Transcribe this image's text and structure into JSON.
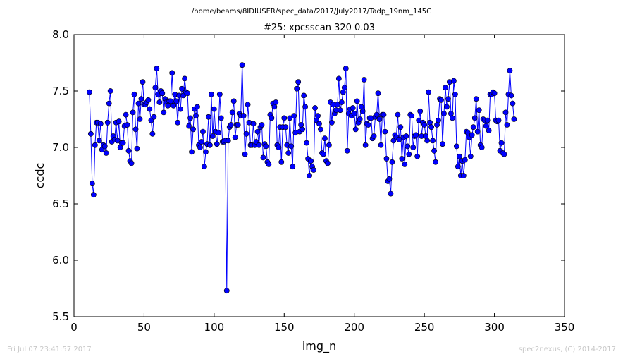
{
  "footer": {
    "timestamp": "Fri Jul 07 23:41:57 2017",
    "credit": "spec2nexus, (C) 2014-2017"
  },
  "chart_data": {
    "type": "line",
    "suptitle": "/home/beams/8IDIUSER/spec_data/2017/July2017/Tadp_19nm_145C",
    "title": "#25: xpcsscan 320 0.03",
    "xlabel": "img_n",
    "ylabel": "ccdc",
    "xlim": [
      0,
      350
    ],
    "ylim": [
      5.5,
      8.0
    ],
    "xticks": [
      0,
      50,
      100,
      150,
      200,
      250,
      300,
      350
    ],
    "yticks": [
      5.5,
      6.0,
      6.5,
      7.0,
      7.5,
      8.0
    ],
    "ytick_labels": [
      "5.5",
      "6.0",
      "6.5",
      "7.0",
      "7.5",
      "8.0"
    ],
    "grid": false,
    "series": [
      {
        "color": "#0000ff",
        "marker": "circle",
        "x_start": 11,
        "x_step": 1,
        "y": [
          7.49,
          7.12,
          6.68,
          6.58,
          7.02,
          7.22,
          7.22,
          7.06,
          7.21,
          6.98,
          7.02,
          7.01,
          6.95,
          7.22,
          7.39,
          7.5,
          7.05,
          7.1,
          7.07,
          7.22,
          7.06,
          7.23,
          7.0,
          7.04,
          7.04,
          7.19,
          7.29,
          7.2,
          6.97,
          6.88,
          6.86,
          7.31,
          7.47,
          7.16,
          6.99,
          7.39,
          7.25,
          7.43,
          7.58,
          7.38,
          7.38,
          7.4,
          7.42,
          7.34,
          7.24,
          7.12,
          7.27,
          7.53,
          7.7,
          7.47,
          7.4,
          7.5,
          7.48,
          7.31,
          7.43,
          7.4,
          7.37,
          7.41,
          7.41,
          7.66,
          7.37,
          7.47,
          7.41,
          7.22,
          7.46,
          7.34,
          7.52,
          7.46,
          7.61,
          7.49,
          7.48,
          7.19,
          7.26,
          6.96,
          7.16,
          7.34,
          7.28,
          7.36,
          7.02,
          7.0,
          7.05,
          7.14,
          6.83,
          6.96,
          7.03,
          7.27,
          7.02,
          7.47,
          7.1,
          7.34,
          7.14,
          7.03,
          7.13,
          7.47,
          7.26,
          7.05,
          7.05,
          7.06,
          5.73,
          7.06,
          7.18,
          7.2,
          7.31,
          7.41,
          7.09,
          7.2,
          7.2,
          7.3,
          7.28,
          7.73,
          7.28,
          6.94,
          7.12,
          7.38,
          7.22,
          7.02,
          7.02,
          7.21,
          7.02,
          7.05,
          7.14,
          7.02,
          7.18,
          7.2,
          6.91,
          7.03,
          7.01,
          6.87,
          6.85,
          7.29,
          7.26,
          7.39,
          7.36,
          7.4,
          7.02,
          7.0,
          7.18,
          6.87,
          7.18,
          7.26,
          7.18,
          7.02,
          6.95,
          7.26,
          7.01,
          6.83,
          7.28,
          7.13,
          7.52,
          7.58,
          7.14,
          7.2,
          7.16,
          7.46,
          7.36,
          7.04,
          6.9,
          6.75,
          6.88,
          6.83,
          6.8,
          7.35,
          7.24,
          7.28,
          7.21,
          7.16,
          6.95,
          6.94,
          7.08,
          6.88,
          6.86,
          7.02,
          7.4,
          7.22,
          7.38,
          7.3,
          7.33,
          7.38,
          7.61,
          7.33,
          7.4,
          7.49,
          7.53,
          7.7,
          6.97,
          7.3,
          7.34,
          7.28,
          7.35,
          7.3,
          7.16,
          7.41,
          7.22,
          7.25,
          7.36,
          7.32,
          7.6,
          7.02,
          7.21,
          7.2,
          7.26,
          7.26,
          7.08,
          7.1,
          7.27,
          7.29,
          7.48,
          7.25,
          7.02,
          7.29,
          7.29,
          7.14,
          6.9,
          6.7,
          6.72,
          6.59,
          6.87,
          7.06,
          7.11,
          7.09,
          7.29,
          7.07,
          7.18,
          6.9,
          7.09,
          6.85,
          7.1,
          7.01,
          6.94,
          7.29,
          7.28,
          7.0,
          7.1,
          7.11,
          6.92,
          7.24,
          7.32,
          7.1,
          7.22,
          7.2,
          7.1,
          7.06,
          7.49,
          7.22,
          7.18,
          7.06,
          6.97,
          6.87,
          7.2,
          7.24,
          7.43,
          7.42,
          7.03,
          7.3,
          7.53,
          7.36,
          7.43,
          7.58,
          7.3,
          7.26,
          7.59,
          7.47,
          7.01,
          6.83,
          6.92,
          6.75,
          6.88,
          6.75,
          6.89,
          7.14,
          7.13,
          7.09,
          6.92,
          7.11,
          7.18,
          7.26,
          7.43,
          7.14,
          7.33,
          7.02,
          7.0,
          7.25,
          7.24,
          7.19,
          7.24,
          7.15,
          7.47,
          7.47,
          7.49,
          7.48,
          7.24,
          7.23,
          7.24,
          6.97,
          7.04,
          6.95,
          6.94,
          7.31,
          7.2,
          7.47,
          7.68,
          7.46,
          7.39,
          7.25
        ]
      }
    ]
  }
}
